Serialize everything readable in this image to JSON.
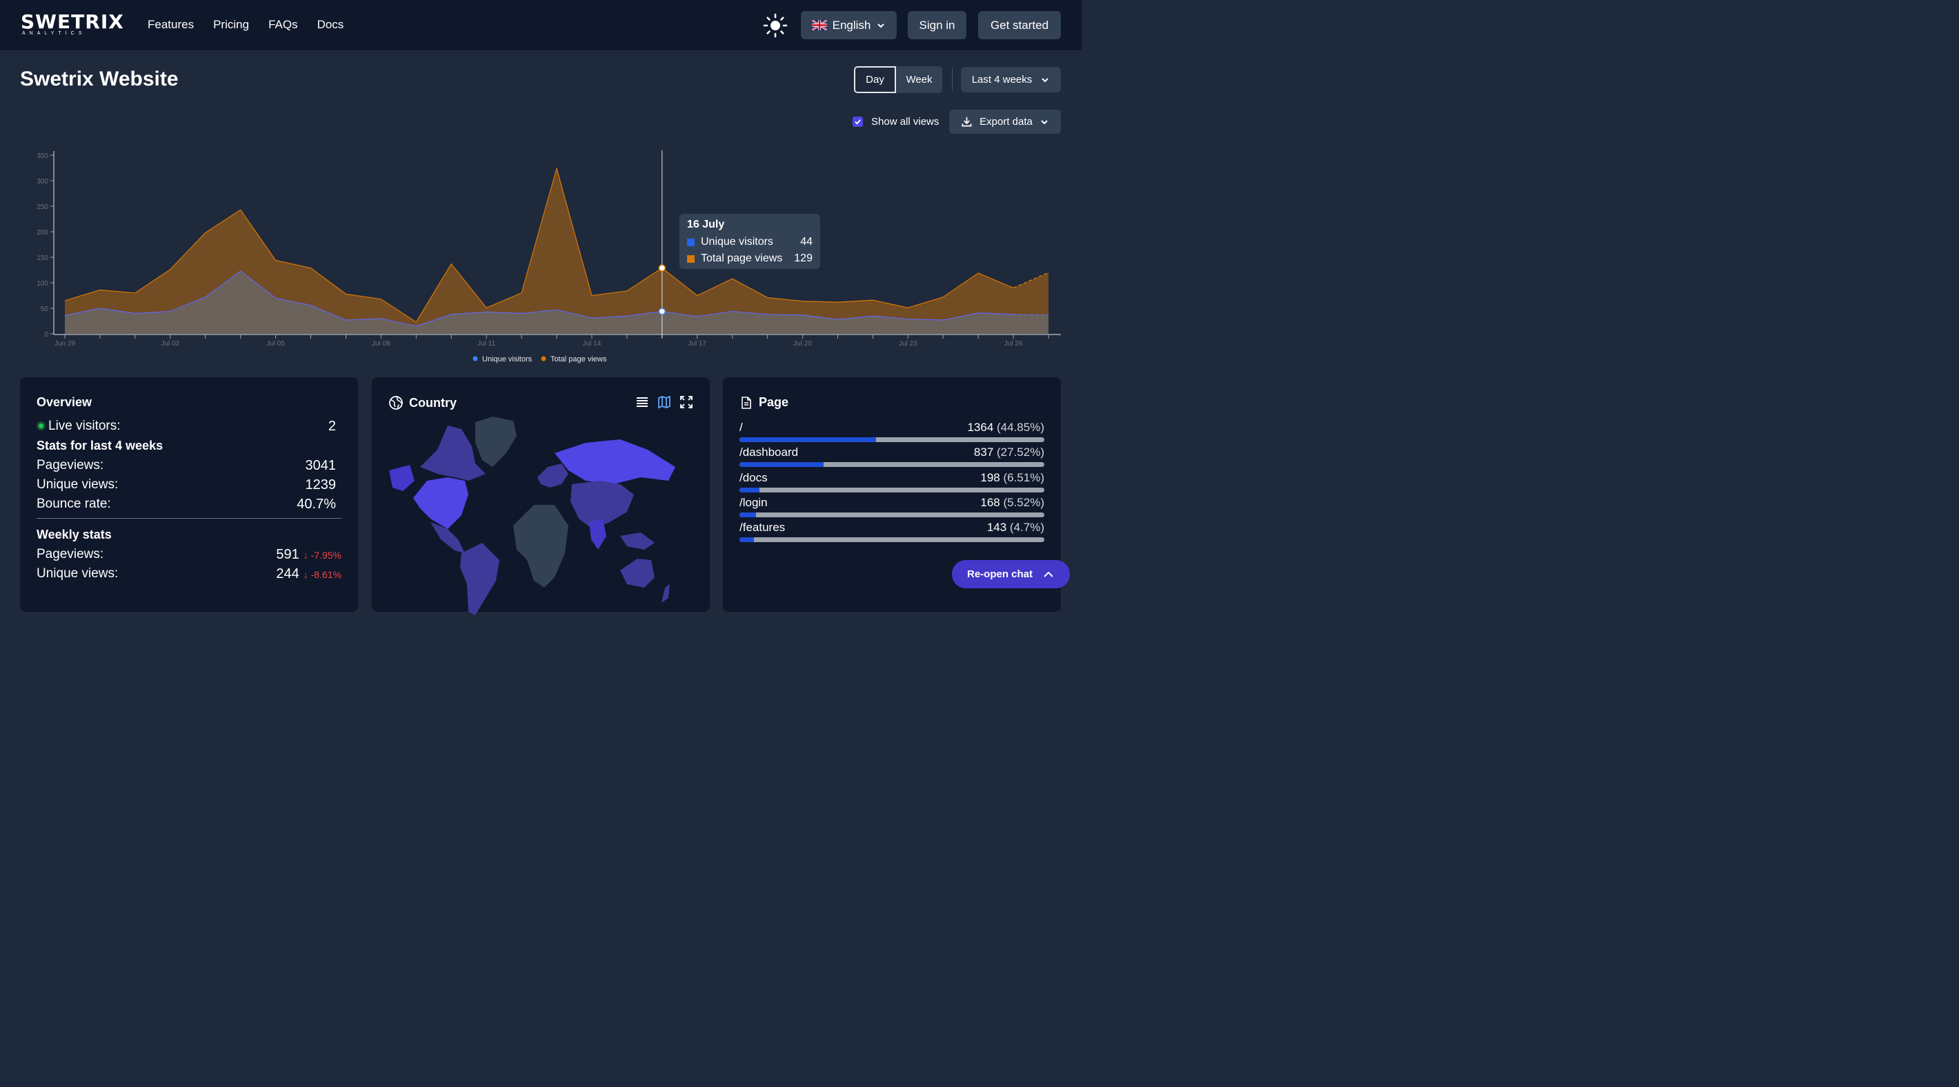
{
  "brand": {
    "name": "SWETRIX",
    "sub": "ANALYTICS"
  },
  "nav": [
    "Features",
    "Pricing",
    "FAQs",
    "Docs"
  ],
  "header": {
    "language": "English",
    "sign_in": "Sign in",
    "get_started": "Get started"
  },
  "project": {
    "title": "Swetrix Website"
  },
  "controls": {
    "day": "Day",
    "week": "Week",
    "period": "Last 4 weeks",
    "show_all_views": "Show all views",
    "export": "Export data"
  },
  "tooltip": {
    "date": "16 July",
    "unique_label": "Unique visitors",
    "unique_value": "44",
    "total_label": "Total page views",
    "total_value": "129"
  },
  "chart_data": {
    "type": "area",
    "x": [
      "Jun 29",
      "Jun 30",
      "Jul 01",
      "Jul 02",
      "Jul 03",
      "Jul 04",
      "Jul 05",
      "Jul 06",
      "Jul 07",
      "Jul 08",
      "Jul 09",
      "Jul 10",
      "Jul 11",
      "Jul 12",
      "Jul 13",
      "Jul 14",
      "Jul 15",
      "Jul 16",
      "Jul 17",
      "Jul 18",
      "Jul 19",
      "Jul 20",
      "Jul 21",
      "Jul 22",
      "Jul 23",
      "Jul 24",
      "Jul 25",
      "Jul 26",
      "Jul 27"
    ],
    "x_tick_labels": [
      "Jun 29",
      "Jul 02",
      "Jul 05",
      "Jul 08",
      "Jul 11",
      "Jul 14",
      "Jul 17",
      "Jul 20",
      "Jul 23",
      "Jul 26"
    ],
    "y_ticks": [
      0,
      50,
      100,
      150,
      200,
      250,
      300,
      350
    ],
    "ylim": [
      0,
      350
    ],
    "series": [
      {
        "name": "Unique visitors",
        "color": "#3b82f6",
        "values": [
          36,
          50,
          40,
          44,
          72,
          123,
          70,
          56,
          27,
          30,
          15,
          38,
          43,
          40,
          47,
          31,
          35,
          44,
          34,
          44,
          38,
          37,
          28,
          35,
          29,
          27,
          41,
          38,
          37
        ]
      },
      {
        "name": "Total page views",
        "color": "#d97706",
        "values": [
          65,
          86,
          80,
          126,
          198,
          243,
          144,
          129,
          78,
          68,
          23,
          137,
          51,
          80,
          324,
          75,
          84,
          129,
          75,
          108,
          71,
          64,
          62,
          66,
          51,
          72,
          119,
          90,
          120
        ]
      }
    ],
    "legend_position": "bottom-center",
    "grid": false
  },
  "overview": {
    "title": "Overview",
    "live_label": "Live visitors:",
    "live_value": "2",
    "stats_heading": "Stats for last 4 weeks",
    "pageviews_label": "Pageviews:",
    "pageviews_value": "3041",
    "unique_label": "Unique views:",
    "unique_value": "1239",
    "bounce_label": "Bounce rate:",
    "bounce_value": "40.7%",
    "weekly_heading": "Weekly stats",
    "w_pageviews_label": "Pageviews:",
    "w_pageviews_value": "591",
    "w_pageviews_delta": "-7.95%",
    "w_unique_label": "Unique views:",
    "w_unique_value": "244",
    "w_unique_delta": "-8.61%"
  },
  "country": {
    "title": "Country"
  },
  "pages": {
    "title": "Page",
    "rows": [
      {
        "path": "/",
        "count": "1364",
        "pct": "(44.85%)",
        "fraction": 0.4485
      },
      {
        "path": "/dashboard",
        "count": "837",
        "pct": "(27.52%)",
        "fraction": 0.2752
      },
      {
        "path": "/docs",
        "count": "198",
        "pct": "(6.51%)",
        "fraction": 0.0651
      },
      {
        "path": "/login",
        "count": "168",
        "pct": "(5.52%)",
        "fraction": 0.0552
      },
      {
        "path": "/features",
        "count": "143",
        "pct": "(4.7%)",
        "fraction": 0.047
      }
    ]
  },
  "chat": {
    "reopen": "Re-open chat"
  },
  "colors": {
    "accent": "#4f46e5",
    "unique": "#3b82f6",
    "total": "#d97706"
  }
}
